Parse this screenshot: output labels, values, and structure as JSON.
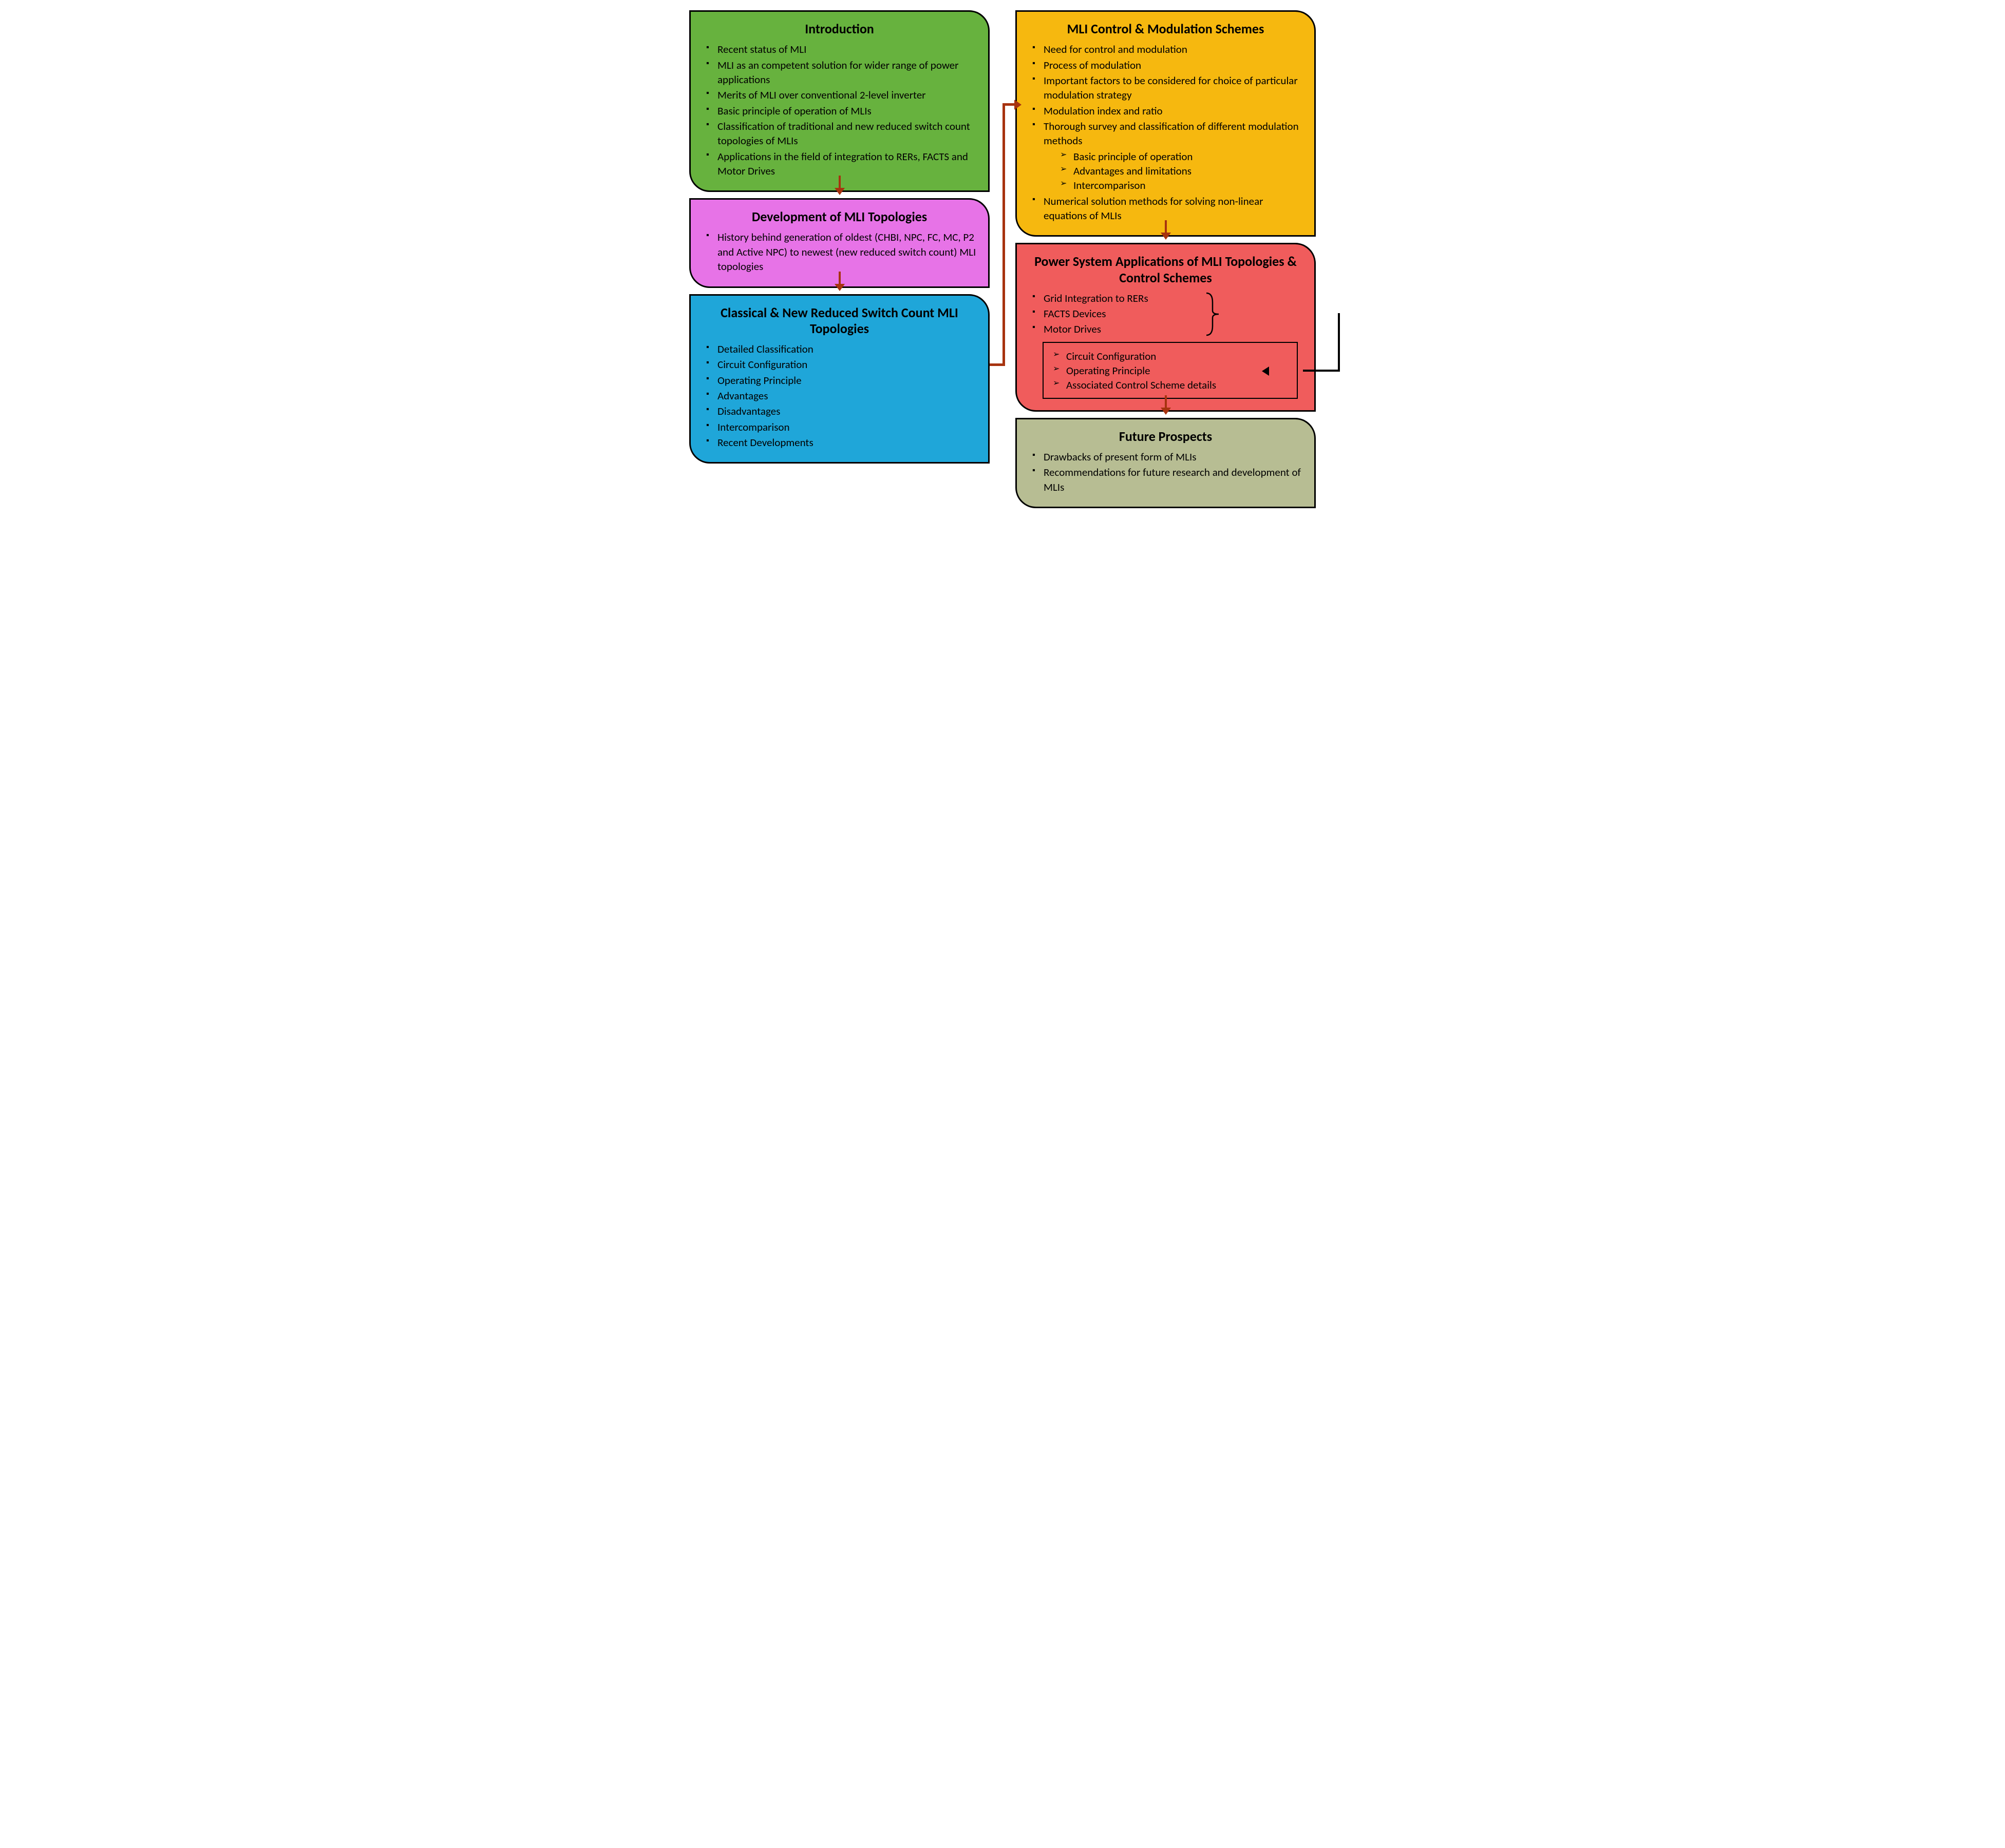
{
  "colors": {
    "arrow": "#a7330f",
    "border": "#000000",
    "text": "#000000",
    "background": "#ffffff"
  },
  "boxes": {
    "intro": {
      "bg": "#67b23e",
      "title": "Introduction",
      "items": [
        "Recent status of MLI",
        "MLI as an competent solution for wider range of power applications",
        "Merits of MLI over conventional 2-level inverter",
        "Basic principle of operation of MLIs",
        "Classification of traditional and new reduced switch count topologies of MLIs",
        "Applications in the field of integration to RERs, FACTS and Motor Drives"
      ]
    },
    "dev": {
      "bg": "#e773e7",
      "title": "Development of MLI Topologies",
      "items": [
        "History behind generation of oldest (CHBI, NPC, FC, MC, P2 and Active NPC) to newest (new reduced switch count) MLI topologies"
      ]
    },
    "classical": {
      "bg": "#1fa6d9",
      "title": "Classical & New Reduced Switch Count MLI Topologies",
      "items": [
        "Detailed Classification",
        "Circuit Configuration",
        "Operating Principle",
        "Advantages",
        "Disadvantages",
        "Intercomparison",
        "Recent Developments"
      ]
    },
    "control": {
      "bg": "#f6b80f",
      "title": "MLI Control & Modulation Schemes",
      "items": [
        "Need for control and modulation",
        "Process of modulation",
        "Important factors to be considered for choice of particular modulation strategy",
        "Modulation index and ratio",
        "Thorough survey and classification of different modulation methods"
      ],
      "sub": [
        "Basic principle of operation",
        "Advantages and limitations",
        "Intercomparison"
      ],
      "items_after": [
        "Numerical solution methods for solving non-linear equations of MLIs"
      ]
    },
    "apps": {
      "bg": "#f05c5c",
      "title": "Power System Applications of MLI Topologies & Control Schemes",
      "items": [
        "Grid Integration to RERs",
        "FACTS Devices",
        "Motor Drives"
      ],
      "inner_sub": [
        "Circuit Configuration",
        "Operating Principle",
        "Associated Control Scheme details"
      ]
    },
    "future": {
      "bg": "#b7bd93",
      "title": "Future Prospects",
      "items": [
        "Drawbacks of present form of MLIs",
        "Recommendations for future research and development of MLIs"
      ]
    }
  }
}
